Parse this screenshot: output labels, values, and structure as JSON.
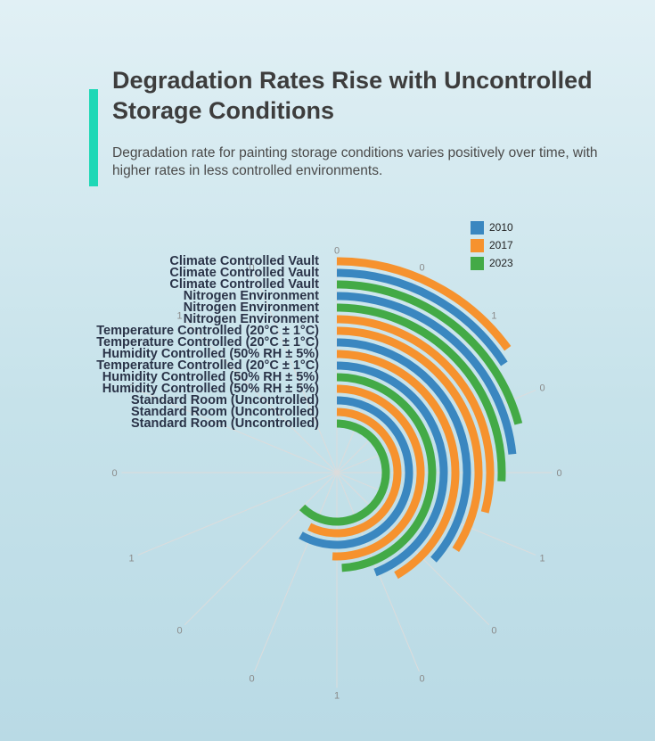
{
  "header": {
    "title": "Degradation Rates Rise with Uncontrolled Storage Conditions",
    "subtitle": "Degradation rate for painting storage conditions varies positively over time, with higher rates in less controlled environments."
  },
  "chart_data": {
    "type": "radial-bar",
    "categories": [
      "Climate Controlled Vault",
      "Climate Controlled Vault",
      "Climate Controlled Vault",
      "Nitrogen Environment",
      "Nitrogen Environment",
      "Nitrogen Environment",
      "Temperature Controlled (20°C ± 1°C)",
      "Temperature Controlled (20°C ± 1°C)",
      "Humidity Controlled (50% RH ± 5%)",
      "Temperature Controlled (20°C ± 1°C)",
      "Humidity Controlled (50% RH ± 5%)",
      "Humidity Controlled (50% RH ± 5%)",
      "Standard Room (Uncontrolled)",
      "Standard Room (Uncontrolled)",
      "Standard Room (Uncontrolled)"
    ],
    "bar_series": [
      "2017",
      "2010",
      "2023",
      "2010",
      "2023",
      "2017",
      "2017",
      "2010",
      "2017",
      "2010",
      "2023",
      "2017",
      "2010",
      "2017",
      "2023"
    ],
    "bar_values": [
      0.9,
      0.95,
      1.25,
      1.4,
      1.55,
      1.75,
      2.05,
      2.2,
      2.5,
      2.65,
      2.95,
      3.05,
      3.5,
      3.45,
      3.75
    ],
    "series": [
      {
        "name": "2010",
        "color": "#3a87c0"
      },
      {
        "name": "2017",
        "color": "#f6922e"
      },
      {
        "name": "2023",
        "color": "#43aa46"
      }
    ],
    "radial_axis_max": 6,
    "angular_tick_labels": [
      "0",
      "0",
      "1",
      "0",
      "0",
      "1",
      "0",
      "0",
      "1",
      "0",
      "0",
      "1",
      "0",
      "0",
      "1",
      "0"
    ],
    "legend_position": "top-right"
  }
}
